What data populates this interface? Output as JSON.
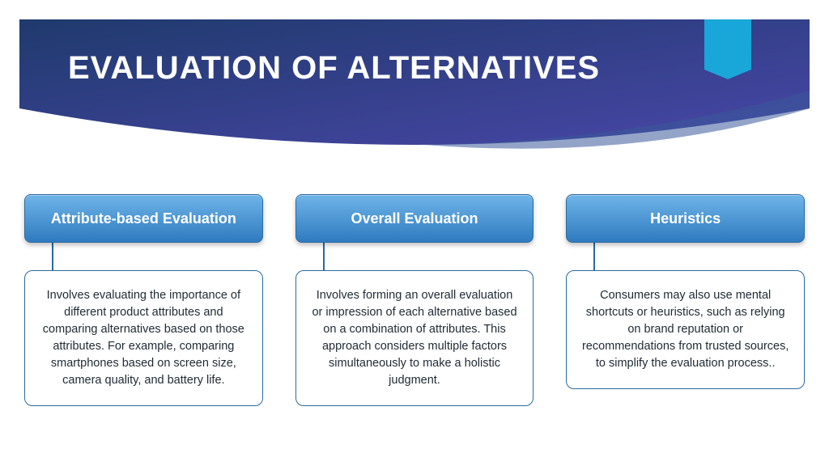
{
  "slide": {
    "title": "EVALUATION OF ALTERNATIVES",
    "title_fontsize": 40,
    "title_color": "#ffffff",
    "banner": {
      "gradient_start": "#1f3a6d",
      "gradient_end": "#4a46a8",
      "swoosh_color": "#3a5a9a",
      "accent_tab_color": "#19a6d8",
      "height": 170
    },
    "background_color": "#ffffff"
  },
  "cards": [
    {
      "title": "Attribute-based Evaluation",
      "body": "Involves evaluating the importance of different product attributes and comparing alternatives based on those attributes. For example, comparing smartphones based on screen size, camera quality, and battery life."
    },
    {
      "title": "Overall Evaluation",
      "body": "Involves forming an overall evaluation or impression of each alternative based on a combination of attributes. This approach considers multiple factors simultaneously to make a holistic judgment."
    },
    {
      "title": "Heuristics",
      "body": "Consumers may also use mental shortcuts or heuristics, such as relying on brand reputation or recommendations from trusted sources, to simplify the evaluation process.."
    }
  ],
  "card_style": {
    "header_gradient_top": "#6fb4e8",
    "header_gradient_bottom": "#2f7bc0",
    "header_font_size": 18,
    "header_text_color": "#ffffff",
    "body_border_color": "#2b6a9e",
    "body_font_size": 14.5,
    "connector_height": 34,
    "connector_color": "#2b6a9e",
    "body_text_color": "#1f2a33",
    "border_radius": 10
  }
}
